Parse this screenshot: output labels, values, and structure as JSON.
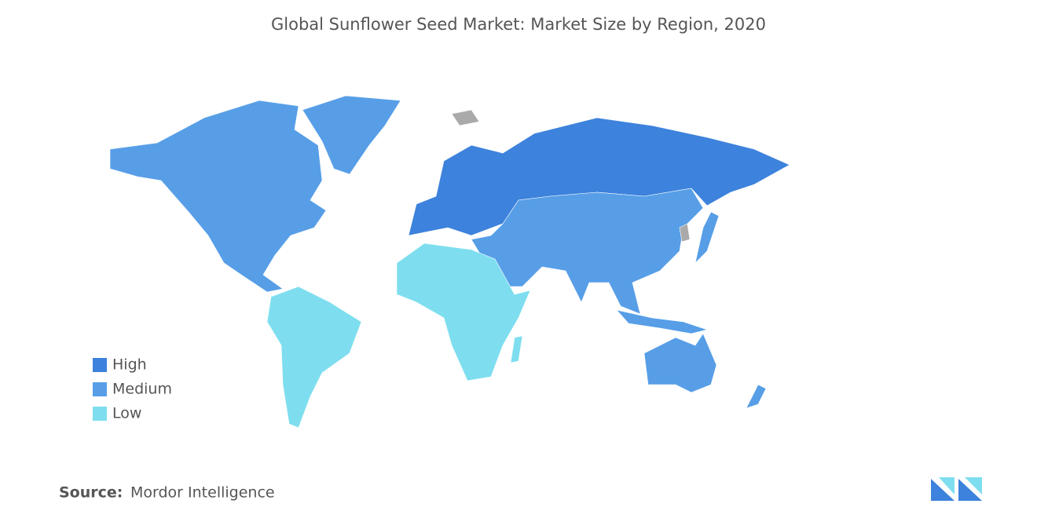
{
  "title": "Global Sunflower Seed Market: Market Size by Region, 2020",
  "legend": {
    "items": [
      {
        "label": "High",
        "color": "#3d82dc"
      },
      {
        "label": "Medium",
        "color": "#579ee7"
      },
      {
        "label": "Low",
        "color": "#7edeef"
      }
    ]
  },
  "source": {
    "label": "Source:",
    "text": "Mordor Intelligence"
  }
}
